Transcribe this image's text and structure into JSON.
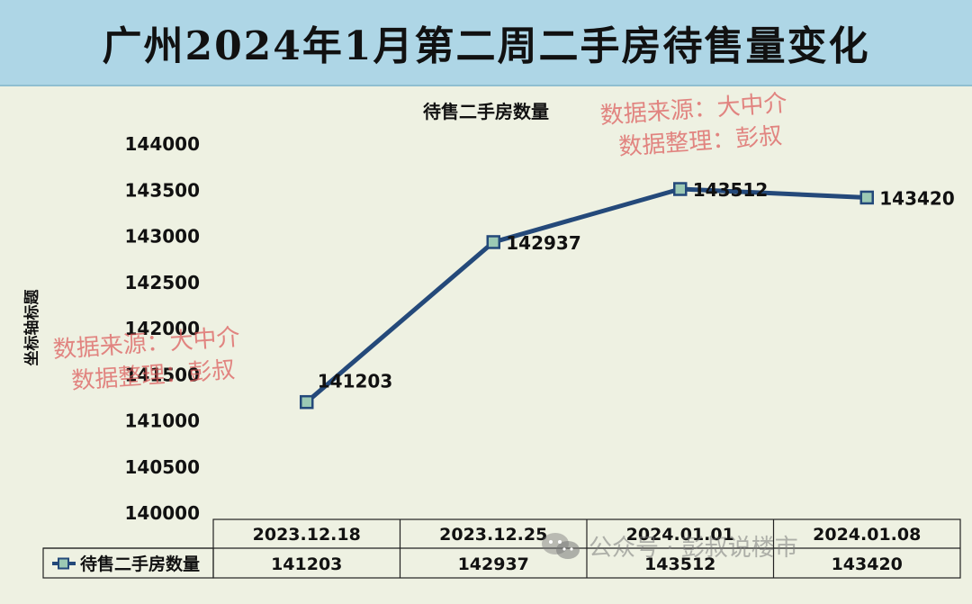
{
  "header": {
    "title": "广州2024年1月第二周二手房待售量变化"
  },
  "chart_data": {
    "type": "line",
    "title": "待售二手房数量",
    "ylabel": "坐标轴标题",
    "xlabel": "",
    "categories": [
      "2023.12.18",
      "2023.12.25",
      "2024.01.01",
      "2024.01.08"
    ],
    "series": [
      {
        "name": "待售二手房数量",
        "values": [
          141203,
          142937,
          143512,
          143420
        ],
        "color": "#24497a"
      }
    ],
    "ylim": [
      140000,
      144000
    ],
    "yticks": [
      "140000",
      "140500",
      "141000",
      "141500",
      "142000",
      "142500",
      "143000",
      "143500",
      "144000"
    ],
    "grid": false,
    "legend": "data-table"
  },
  "watermarks": {
    "top_right": {
      "line1": "数据来源：大中介",
      "line2": "数据整理：彭叔"
    },
    "left": {
      "line1": "数据来源：大中介",
      "line2": "数据整理：彭叔"
    },
    "footer": "公众号 · 彭叔说楼市"
  },
  "colors": {
    "header_bg": "#aed6e6",
    "panel_bg": "#eef1e2",
    "line": "#24497a",
    "marker": "#9cc9b4",
    "watermark": "#dc5a5a"
  }
}
